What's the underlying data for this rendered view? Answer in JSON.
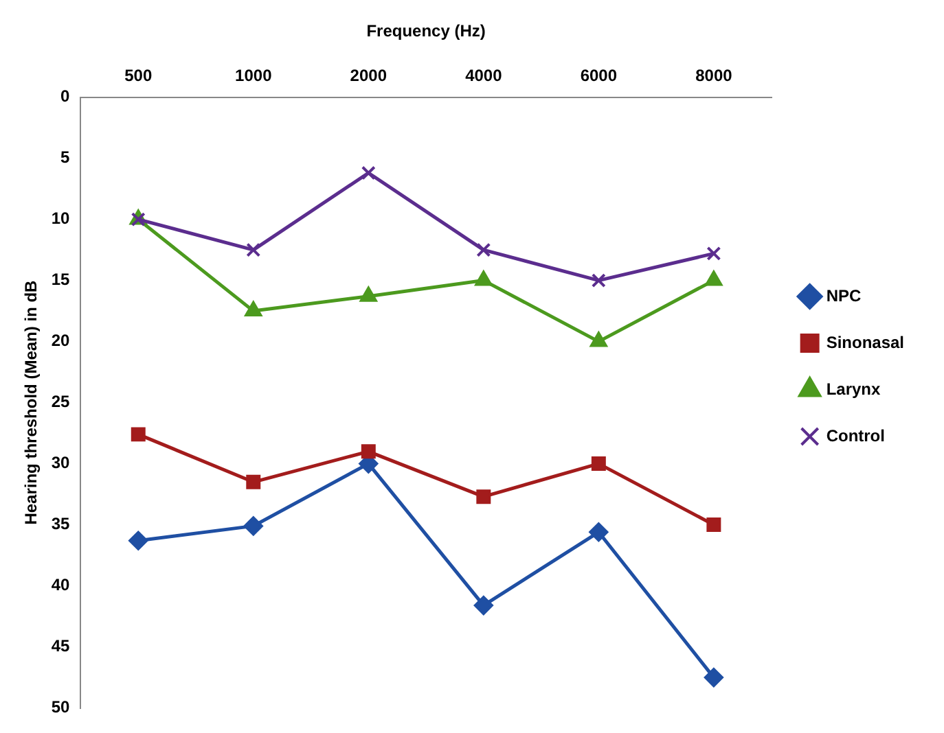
{
  "chart_data": {
    "type": "line",
    "xlabel": "Frequency (Hz)",
    "ylabel": "Hearing threshold (Mean) in dB",
    "categories": [
      "500",
      "1000",
      "2000",
      "4000",
      "6000",
      "8000"
    ],
    "series": [
      {
        "name": "NPC",
        "color": "#1f4fa3",
        "marker": "diamond",
        "values": [
          36.3,
          35.1,
          30,
          41.6,
          35.6,
          47.5
        ]
      },
      {
        "name": "Sinonasal",
        "color": "#a31c1c",
        "marker": "square",
        "values": [
          27.6,
          31.5,
          29,
          32.7,
          30,
          35
        ]
      },
      {
        "name": "Larynx",
        "color": "#4c9a1e",
        "marker": "triangle",
        "values": [
          10,
          17.5,
          16.3,
          15,
          20,
          15
        ]
      },
      {
        "name": "Control",
        "color": "#5b2d8e",
        "marker": "cross",
        "values": [
          10,
          12.5,
          6.2,
          12.5,
          15,
          12.8
        ]
      }
    ],
    "ylim": [
      50,
      0
    ],
    "yticks": [
      0,
      5,
      10,
      15,
      20,
      25,
      30,
      35,
      40,
      45,
      50
    ],
    "grid": false,
    "legend": "right",
    "line_style": "solid"
  }
}
